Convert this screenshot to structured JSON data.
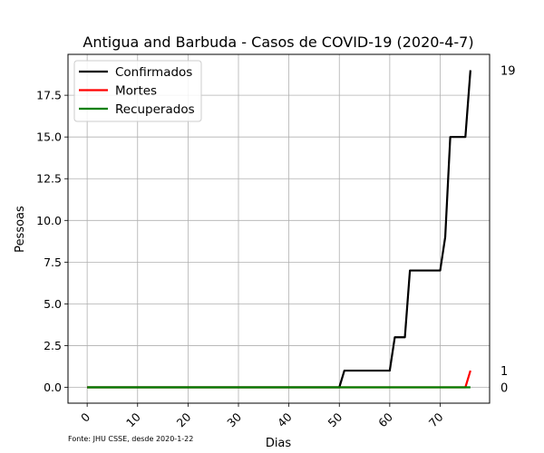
{
  "chart_data": {
    "type": "line",
    "title": "Antigua and Barbuda - Casos de COVID-19 (2020-4-7)",
    "xlabel": "Dias",
    "ylabel": "Pessoas",
    "xlim": [
      -3.8,
      79.8
    ],
    "ylim": [
      -0.95,
      19.95
    ],
    "x_ticks": [
      0,
      10,
      20,
      30,
      40,
      50,
      60,
      70
    ],
    "y_ticks": [
      0.0,
      2.5,
      5.0,
      7.5,
      10.0,
      12.5,
      15.0,
      17.5
    ],
    "y_tick_labels": [
      "0.0",
      "2.5",
      "5.0",
      "7.5",
      "10.0",
      "12.5",
      "15.0",
      "17.5"
    ],
    "grid": true,
    "legend": "top-left",
    "series": [
      {
        "name": "Confirmados",
        "color": "#000000",
        "points": [
          [
            0,
            0
          ],
          [
            50,
            0
          ],
          [
            51,
            1
          ],
          [
            60,
            1
          ],
          [
            61,
            3
          ],
          [
            63,
            3
          ],
          [
            64,
            7
          ],
          [
            70,
            7
          ],
          [
            71,
            9
          ],
          [
            72,
            15
          ],
          [
            75,
            15
          ],
          [
            76,
            19
          ]
        ],
        "end_label": "19"
      },
      {
        "name": "Mortes",
        "color": "#ff0000",
        "points": [
          [
            0,
            0
          ],
          [
            75,
            0
          ],
          [
            76,
            1
          ]
        ],
        "end_label": "1"
      },
      {
        "name": "Recuperados",
        "color": "#008000",
        "points": [
          [
            0,
            0
          ],
          [
            76,
            0
          ]
        ],
        "end_label": "0"
      }
    ],
    "source_note": "Fonte: JHU CSSE, desde 2020-1-22"
  }
}
